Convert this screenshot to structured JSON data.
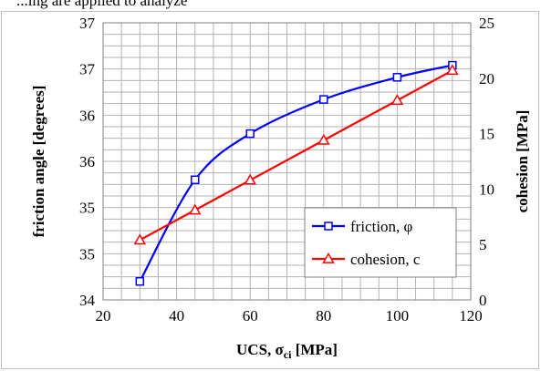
{
  "caption_fragment": "...ing are applied to analyze",
  "chart_data": {
    "type": "line",
    "title": "",
    "xlabel": "UCS, σ",
    "xlabel_sub": "ci",
    "xlabel_unit": " [MPa]",
    "ylabel_left": "friction angle [degrees]",
    "ylabel_right": "cohesion [MPa]",
    "xlim": [
      20,
      120
    ],
    "ylim_left": [
      34,
      37
    ],
    "ylim_right": [
      0,
      25
    ],
    "x_ticks": [
      20,
      40,
      60,
      80,
      100,
      120
    ],
    "y_left_ticks": [
      34,
      34.5,
      35,
      35.5,
      36,
      36.5,
      37
    ],
    "y_left_tick_labels": [
      "34",
      "35",
      "35",
      "36",
      "36",
      "37",
      "37"
    ],
    "y_right_ticks": [
      0,
      5,
      10,
      15,
      20,
      25
    ],
    "grid": true,
    "legend_position": "right",
    "series": [
      {
        "name": "friction, φ",
        "axis": "left",
        "color": "#0000ff",
        "marker": "square",
        "smooth": true,
        "x": [
          30,
          45,
          60,
          80,
          100,
          115
        ],
        "y": [
          34.2,
          35.3,
          35.8,
          36.17,
          36.41,
          36.54
        ]
      },
      {
        "name": "cohesion, c",
        "axis": "right",
        "color": "#ff0000",
        "marker": "triangle",
        "smooth": false,
        "x": [
          30,
          45,
          60,
          80,
          100,
          115
        ],
        "y": [
          5.4,
          8.1,
          10.8,
          14.4,
          18.0,
          20.7
        ]
      }
    ]
  }
}
